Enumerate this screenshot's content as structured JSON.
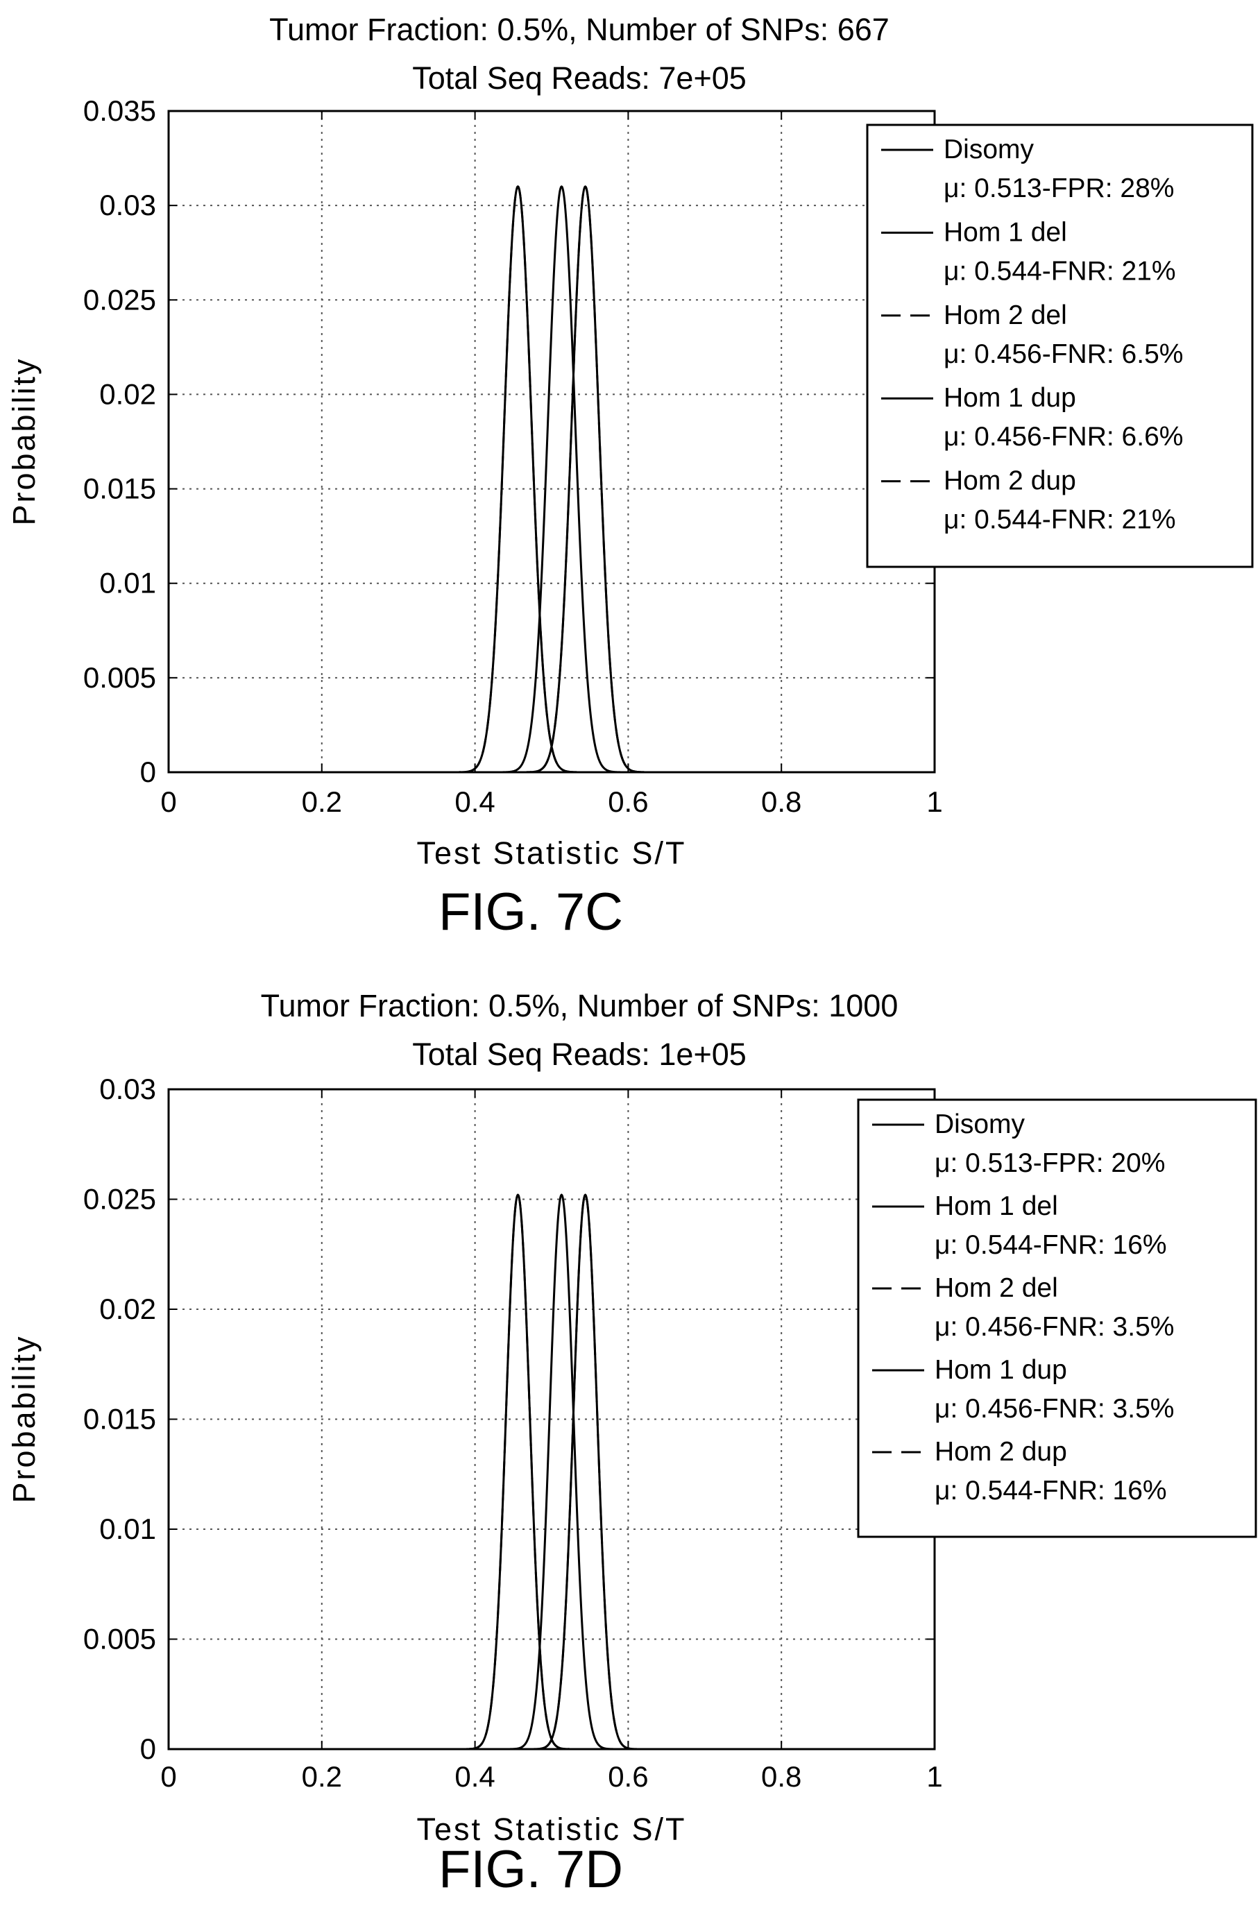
{
  "chart_data": [
    {
      "type": "line",
      "figure_label": "FIG. 7C",
      "title_lines": [
        "Tumor Fraction: 0.5%, Number of SNPs: 667",
        "Total Seq Reads: 7e+05"
      ],
      "xlabel": "Test Statistic S/T",
      "ylabel": "Probability",
      "xlim": [
        0,
        1
      ],
      "ylim": [
        0,
        0.035
      ],
      "x_ticks": [
        "0",
        "0.2",
        "0.4",
        "0.6",
        "0.8",
        "1"
      ],
      "y_ticks": [
        "0",
        "0.005",
        "0.01",
        "0.015",
        "0.02",
        "0.025",
        "0.03",
        "0.035"
      ],
      "grid": true,
      "legend_position": "top-right",
      "peak_probability": 0.031,
      "series": [
        {
          "name": "Disomy",
          "detail": "μ: 0.513-FPR: 28%",
          "mean": 0.513,
          "sd": 0.0176,
          "dash": "solid"
        },
        {
          "name": "Hom 1 del",
          "detail": "μ: 0.544-FNR: 21%",
          "mean": 0.544,
          "sd": 0.0176,
          "dash": "solid"
        },
        {
          "name": "Hom 2 del",
          "detail": "μ: 0.456-FNR: 6.5%",
          "mean": 0.456,
          "sd": 0.0176,
          "dash": "dashed"
        },
        {
          "name": "Hom 1 dup",
          "detail": "μ: 0.456-FNR: 6.6%",
          "mean": 0.456,
          "sd": 0.0176,
          "dash": "solid"
        },
        {
          "name": "Hom 2 dup",
          "detail": "μ: 0.544-FNR: 21%",
          "mean": 0.544,
          "sd": 0.0176,
          "dash": "dashed"
        }
      ]
    },
    {
      "type": "line",
      "figure_label": "FIG. 7D",
      "title_lines": [
        "Tumor Fraction: 0.5%, Number of SNPs: 1000",
        "Total Seq Reads: 1e+05"
      ],
      "xlabel": "Test Statistic S/T",
      "ylabel": "Probability",
      "xlim": [
        0,
        1
      ],
      "ylim": [
        0,
        0.03
      ],
      "x_ticks": [
        "0",
        "0.2",
        "0.4",
        "0.6",
        "0.8",
        "1"
      ],
      "y_ticks": [
        "0",
        "0.005",
        "0.01",
        "0.015",
        "0.02",
        "0.025",
        "0.03"
      ],
      "grid": true,
      "legend_position": "top-right",
      "peak_probability": 0.0252,
      "series": [
        {
          "name": "Disomy",
          "detail": "μ: 0.513-FPR: 20%",
          "mean": 0.513,
          "sd": 0.0155,
          "dash": "solid"
        },
        {
          "name": "Hom 1 del",
          "detail": "μ: 0.544-FNR: 16%",
          "mean": 0.544,
          "sd": 0.0155,
          "dash": "solid"
        },
        {
          "name": "Hom 2 del",
          "detail": "μ: 0.456-FNR: 3.5%",
          "mean": 0.456,
          "sd": 0.0155,
          "dash": "dashed"
        },
        {
          "name": "Hom 1 dup",
          "detail": "μ: 0.456-FNR: 3.5%",
          "mean": 0.456,
          "sd": 0.0155,
          "dash": "solid"
        },
        {
          "name": "Hom 2 dup",
          "detail": "μ: 0.544-FNR: 16%",
          "mean": 0.544,
          "sd": 0.0155,
          "dash": "dashed"
        }
      ]
    }
  ]
}
